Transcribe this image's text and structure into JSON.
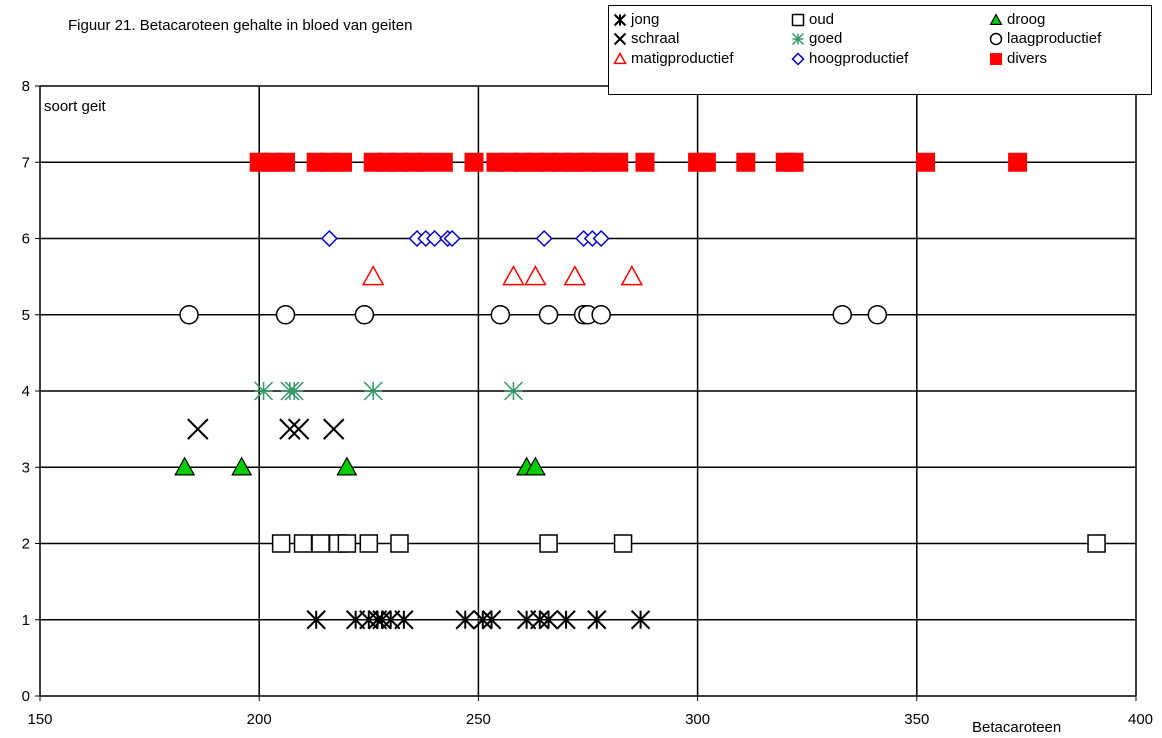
{
  "chart_data": {
    "type": "scatter",
    "title": "Figuur 21. Betacaroteen gehalte in bloed van geiten",
    "xlabel": "Betacaroteen",
    "ylabel": "soort geit",
    "xlim": [
      150,
      400
    ],
    "ylim": [
      0,
      8
    ],
    "xticks": [
      "150",
      "200",
      "250",
      "300",
      "350",
      "400"
    ],
    "yticks": [
      "0",
      "1",
      "2",
      "3",
      "4",
      "5",
      "6",
      "7",
      "8"
    ],
    "grid": true,
    "legend_position": "top-right",
    "series": [
      {
        "name": "jong",
        "marker": "star",
        "color": "#000000",
        "y": 1,
        "x": [
          213,
          222,
          225,
          227,
          228,
          230,
          233,
          247,
          251,
          253,
          261,
          264,
          266,
          270,
          277,
          287
        ]
      },
      {
        "name": "oud",
        "marker": "square",
        "color": "#000000",
        "y": 2,
        "x": [
          205,
          210,
          214,
          218,
          220,
          225,
          232,
          266,
          283,
          391
        ]
      },
      {
        "name": "droog",
        "marker": "triangle-filled",
        "color": "#00cc00",
        "y": 3,
        "x": [
          183,
          196,
          220,
          261,
          263
        ]
      },
      {
        "name": "schraal",
        "marker": "x",
        "color": "#000000",
        "y": 3.5,
        "x": [
          186,
          207,
          209,
          217
        ]
      },
      {
        "name": "goed",
        "marker": "asterisk",
        "color": "#339966",
        "y": 4,
        "x": [
          201,
          207,
          208,
          226,
          258
        ]
      },
      {
        "name": "laagproductief",
        "marker": "circle",
        "color": "#000000",
        "y": 5,
        "x": [
          184,
          206,
          224,
          255,
          266,
          274,
          275,
          278,
          333,
          341
        ]
      },
      {
        "name": "matigproductief",
        "marker": "triangle",
        "color": "#ff0000",
        "y": 5.5,
        "x": [
          226,
          258,
          263,
          272,
          285
        ]
      },
      {
        "name": "hoogproductief",
        "marker": "diamond",
        "color": "#0000cc",
        "y": 6,
        "x": [
          216,
          236,
          238,
          240,
          243,
          244,
          265,
          274,
          276,
          278
        ]
      },
      {
        "name": "divers",
        "marker": "square-filled",
        "color": "#ff0000",
        "y": 7,
        "x": [
          200,
          203,
          206,
          213,
          216,
          219,
          226,
          229,
          232,
          235,
          238,
          242,
          249,
          254,
          257,
          260,
          263,
          266,
          269,
          272,
          275,
          278,
          282,
          288,
          300,
          302,
          311,
          320,
          322,
          352,
          373
        ]
      }
    ]
  }
}
